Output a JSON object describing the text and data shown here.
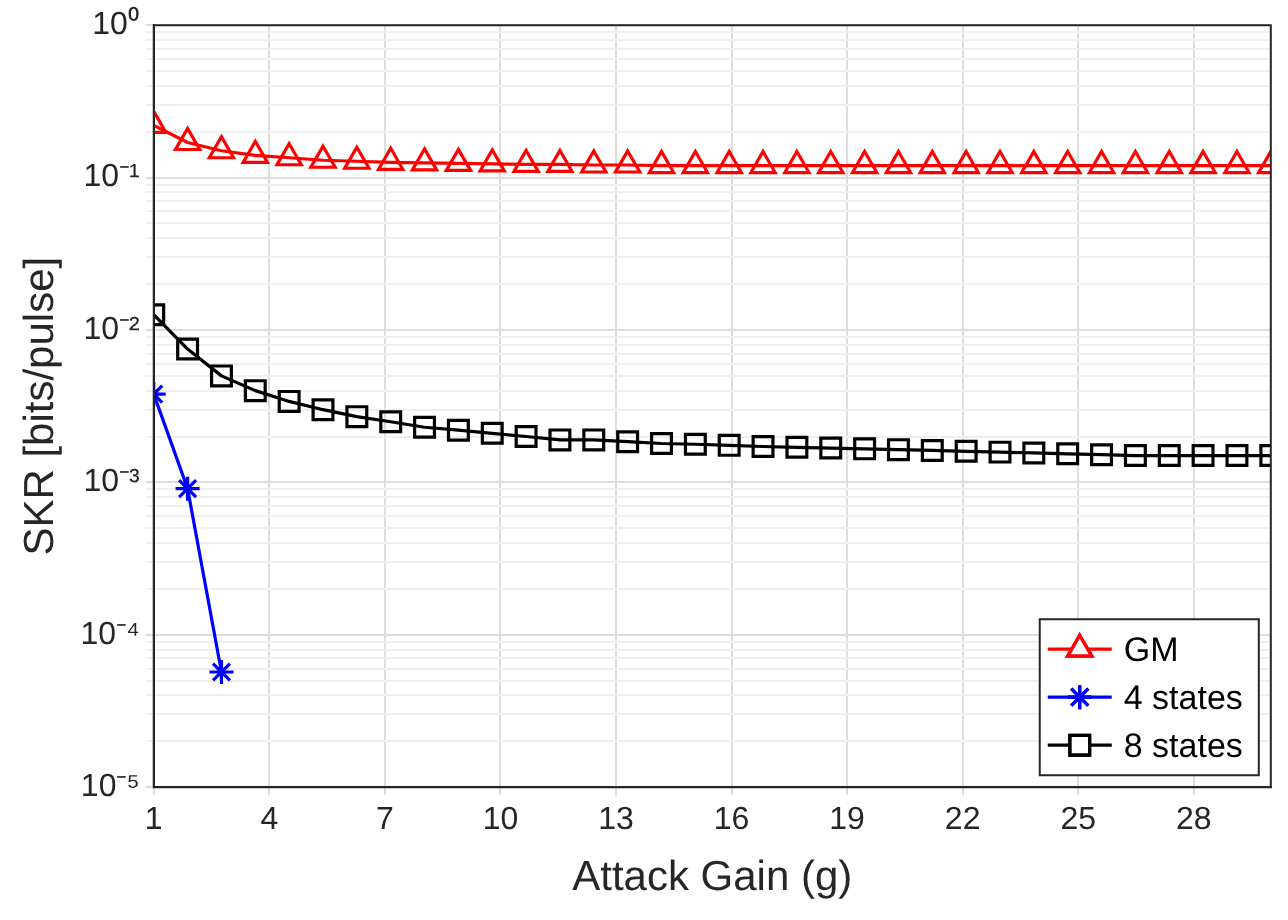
{
  "chart_data": {
    "type": "line",
    "xlabel": "Attack Gain (g)",
    "ylabel": "SKR [bits/pulse]",
    "log": "y",
    "grid": true,
    "legend": "bottom right",
    "line_style": "solid",
    "x": [
      1,
      1.879,
      2.758,
      3.636,
      4.515,
      5.394,
      6.273,
      7.152,
      8.03,
      8.909,
      9.788,
      10.667,
      11.545,
      12.424,
      13.303,
      14.182,
      15.061,
      15.939,
      16.818,
      17.697,
      18.576,
      19.455,
      20.333,
      21.212,
      22.091,
      22.97,
      23.848,
      24.727,
      25.606,
      26.485,
      27.364,
      28.242,
      29.121,
      30
    ],
    "xlim": [
      1,
      30
    ],
    "xticks": [
      1,
      4,
      7,
      10,
      13,
      16,
      19,
      22,
      25,
      28
    ],
    "ylim": [
      1e-05,
      1
    ],
    "yticks": [
      {
        "value": 1e-05,
        "label": "10⁻⁵"
      },
      {
        "value": 2e-05,
        "label": null
      },
      {
        "value": 3e-05,
        "label": null
      },
      {
        "value": 4e-05,
        "label": null
      },
      {
        "value": 5e-05,
        "label": null
      },
      {
        "value": 6e-05,
        "label": null
      },
      {
        "value": 7e-05,
        "label": null
      },
      {
        "value": 8e-05,
        "label": null
      },
      {
        "value": 9e-05,
        "label": null
      },
      {
        "value": 0.0001,
        "label": "10⁻⁴"
      },
      {
        "value": 0.0002,
        "label": null
      },
      {
        "value": 0.0003,
        "label": null
      },
      {
        "value": 0.0004,
        "label": null
      },
      {
        "value": 0.0005,
        "label": null
      },
      {
        "value": 0.0006,
        "label": null
      },
      {
        "value": 0.0007,
        "label": null
      },
      {
        "value": 0.0008,
        "label": null
      },
      {
        "value": 0.0009,
        "label": null
      },
      {
        "value": 0.001,
        "label": "10⁻³"
      },
      {
        "value": 0.002,
        "label": null
      },
      {
        "value": 0.003,
        "label": null
      },
      {
        "value": 0.004,
        "label": null
      },
      {
        "value": 0.005,
        "label": null
      },
      {
        "value": 0.006,
        "label": null
      },
      {
        "value": 0.007,
        "label": null
      },
      {
        "value": 0.008,
        "label": null
      },
      {
        "value": 0.009,
        "label": null
      },
      {
        "value": 0.01,
        "label": "10⁻²"
      },
      {
        "value": 0.02,
        "label": null
      },
      {
        "value": 0.03,
        "label": null
      },
      {
        "value": 0.04,
        "label": null
      },
      {
        "value": 0.05,
        "label": null
      },
      {
        "value": 0.06,
        "label": null
      },
      {
        "value": 0.07,
        "label": null
      },
      {
        "value": 0.08,
        "label": null
      },
      {
        "value": 0.09,
        "label": null
      },
      {
        "value": 0.1,
        "label": "10⁻¹"
      },
      {
        "value": 0.2,
        "label": null
      },
      {
        "value": 0.3,
        "label": null
      },
      {
        "value": 0.4,
        "label": null
      },
      {
        "value": 0.5,
        "label": null
      },
      {
        "value": 0.6,
        "label": null
      },
      {
        "value": 0.7,
        "label": null
      },
      {
        "value": 0.8,
        "label": null
      },
      {
        "value": 0.9,
        "label": null
      },
      {
        "value": 1,
        "label": "10⁰"
      }
    ],
    "series": [
      {
        "name": "GM",
        "color": "#ff0000",
        "marker": "triangle",
        "values": [
          0.22,
          0.17,
          0.15,
          0.14,
          0.135,
          0.13,
          0.128,
          0.126,
          0.125,
          0.124,
          0.123,
          0.122,
          0.122,
          0.121,
          0.121,
          0.12,
          0.12,
          0.12,
          0.12,
          0.12,
          0.12,
          0.12,
          0.12,
          0.12,
          0.12,
          0.12,
          0.12,
          0.12,
          0.12,
          0.12,
          0.12,
          0.12,
          0.12,
          0.12
        ]
      },
      {
        "name": "4 states",
        "color": "#0000ff",
        "marker": "cross",
        "x": [
          1,
          1.879,
          2.758
        ],
        "values": [
          0.0038,
          0.00091,
          5.7e-05
        ]
      },
      {
        "name": "8 states",
        "color": "#000000",
        "marker": "square",
        "values": [
          0.0126,
          0.0075,
          0.005,
          0.004,
          0.0034,
          0.003,
          0.0027,
          0.0025,
          0.0023,
          0.0022,
          0.0021,
          0.002,
          0.0019,
          0.0019,
          0.00185,
          0.0018,
          0.00178,
          0.00175,
          0.00172,
          0.0017,
          0.00168,
          0.00166,
          0.00164,
          0.00162,
          0.0016,
          0.00158,
          0.00156,
          0.00154,
          0.00152,
          0.0015,
          0.0015,
          0.0015,
          0.0015,
          0.0015
        ]
      }
    ]
  }
}
